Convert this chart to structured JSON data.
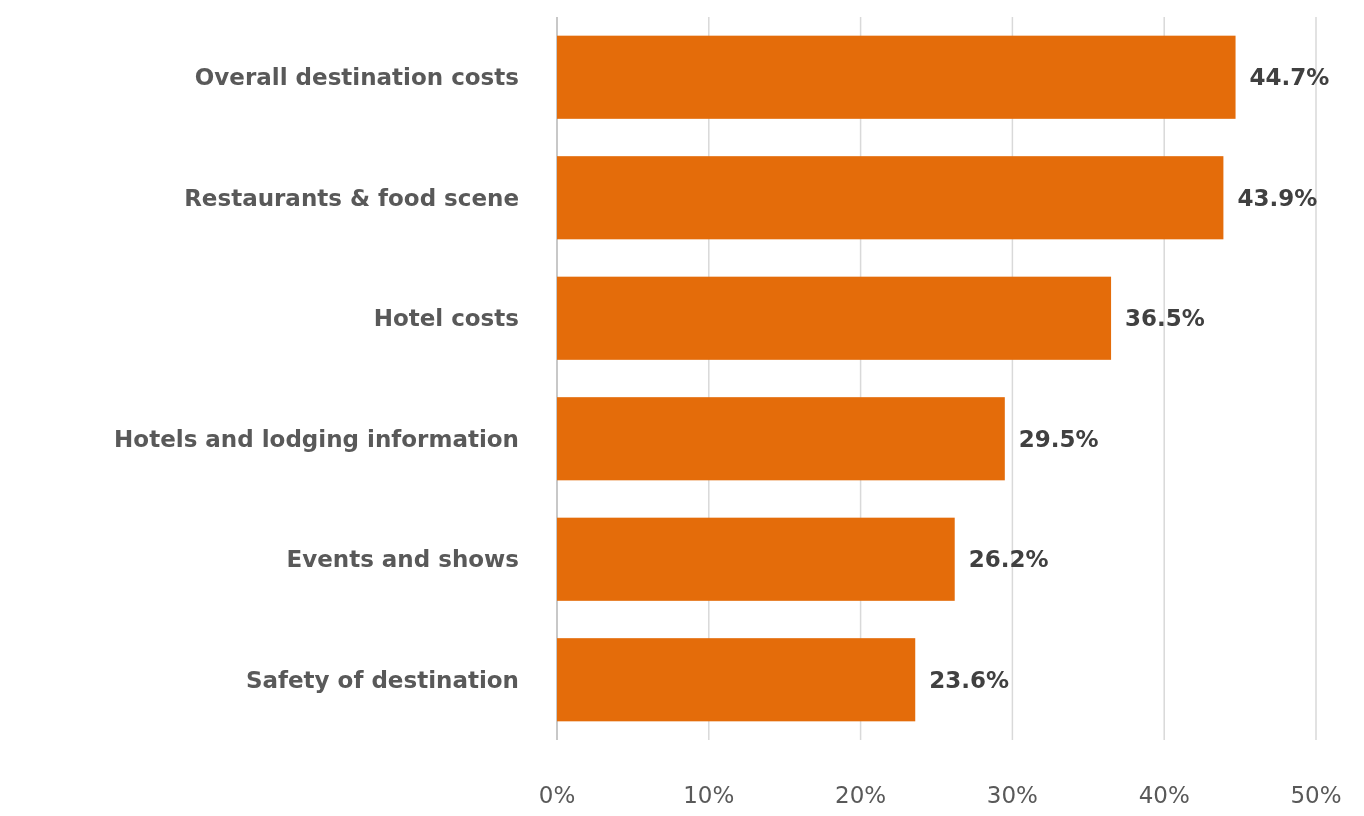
{
  "chart_data": {
    "type": "bar",
    "orientation": "horizontal",
    "categories": [
      "Overall destination costs",
      "Restaurants & food scene",
      "Hotel costs",
      "Hotels and lodging information",
      "Events and shows",
      "Safety of destination"
    ],
    "values": [
      44.7,
      43.9,
      36.5,
      29.5,
      26.2,
      23.6
    ],
    "value_labels": [
      "44.7%",
      "43.9%",
      "36.5%",
      "29.5%",
      "26.2%",
      "23.6%"
    ],
    "color": "#e46c0a",
    "xlim": [
      0,
      50
    ],
    "xticks": [
      {
        "value": 0,
        "label": "0%"
      },
      {
        "value": 10,
        "label": "10%"
      },
      {
        "value": 20,
        "label": "20%"
      },
      {
        "value": 30,
        "label": "30%"
      },
      {
        "value": 40,
        "label": "40%"
      },
      {
        "value": 50,
        "label": "50%"
      }
    ],
    "grid": "x"
  }
}
